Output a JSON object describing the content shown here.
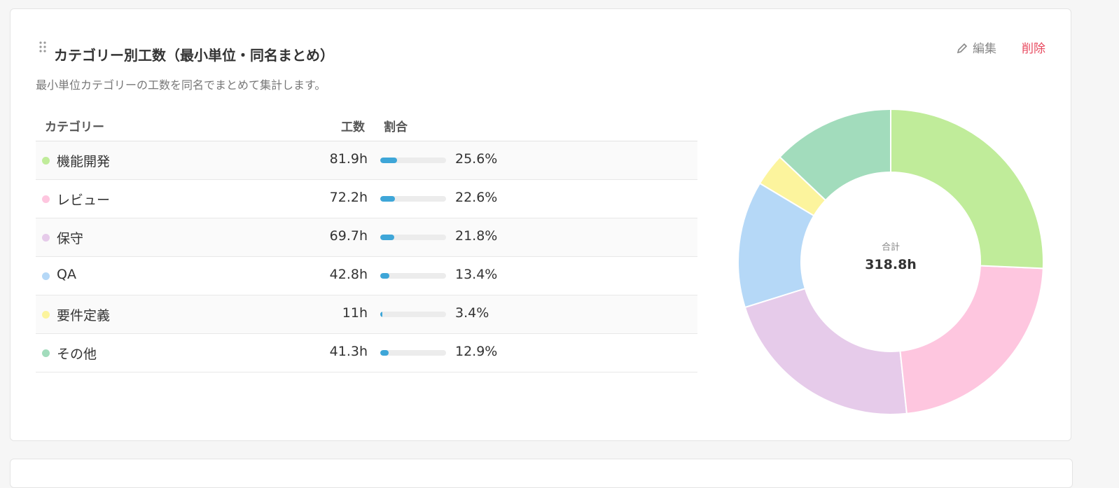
{
  "header": {
    "title": "カテゴリー別工数（最小単位・同名まとめ）",
    "edit": "編集",
    "delete": "削除"
  },
  "description": "最小単位カテゴリーの工数を同名でまとめて集計します。",
  "table": {
    "columns": [
      "カテゴリー",
      "工数",
      "割合"
    ],
    "rows": [
      {
        "name": "機能開発",
        "hours": {
          "value": 81.9,
          "label": "81.9h"
        },
        "share": {
          "value": 25.6,
          "label": "25.6%"
        },
        "color": "#c0ec9a"
      },
      {
        "name": "レビュー",
        "hours": {
          "value": 72.2,
          "label": "72.2h"
        },
        "share": {
          "value": 22.6,
          "label": "22.6%"
        },
        "color": "#fec6df"
      },
      {
        "name": "保守",
        "hours": {
          "value": 69.7,
          "label": "69.7h"
        },
        "share": {
          "value": 21.8,
          "label": "21.8%"
        },
        "color": "#e6cbea"
      },
      {
        "name": "QA",
        "hours": {
          "value": 42.8,
          "label": "42.8h"
        },
        "share": {
          "value": 13.4,
          "label": "13.4%"
        },
        "color": "#b5d8f7"
      },
      {
        "name": "要件定義",
        "hours": {
          "value": 11,
          "label": "11h"
        },
        "share": {
          "value": 3.4,
          "label": "3.4%"
        },
        "color": "#fcf49d"
      },
      {
        "name": "その他",
        "hours": {
          "value": 41.3,
          "label": "41.3h"
        },
        "share": {
          "value": 12.9,
          "label": "12.9%"
        },
        "color": "#a2dcbc"
      }
    ]
  },
  "donut": {
    "center_label": "合計",
    "total": "318.8h"
  }
}
